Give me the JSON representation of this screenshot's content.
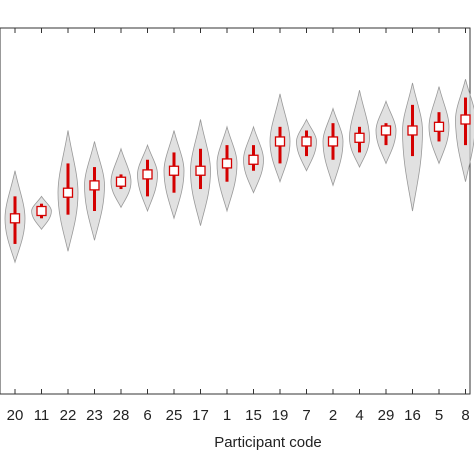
{
  "chart_data": {
    "type": "violin",
    "x_label": "Participant code",
    "categories": [
      "20",
      "11",
      "22",
      "23",
      "28",
      "6",
      "25",
      "17",
      "1",
      "15",
      "19",
      "7",
      "2",
      "4",
      "29",
      "16",
      "5",
      "8"
    ],
    "median": [
      48,
      50,
      55,
      57,
      58,
      60,
      61,
      61,
      63,
      64,
      69,
      69,
      69,
      70,
      72,
      72,
      73,
      75
    ],
    "whisker_low": [
      41,
      48,
      49,
      50,
      56,
      54,
      55,
      56,
      58,
      61,
      63,
      65,
      64,
      66,
      68,
      65,
      69,
      68
    ],
    "whisker_high": [
      54,
      52,
      63,
      62,
      60,
      64,
      66,
      67,
      68,
      68,
      73,
      72,
      74,
      73,
      74,
      79,
      77,
      81
    ],
    "min": [
      36,
      45,
      39,
      42,
      51,
      50,
      48,
      46,
      50,
      55,
      58,
      61,
      57,
      62,
      63,
      50,
      63,
      58
    ],
    "max": [
      61,
      54,
      72,
      69,
      67,
      68,
      72,
      75,
      73,
      73,
      82,
      75,
      78,
      83,
      80,
      85,
      84,
      86
    ],
    "ylim": [
      0,
      100
    ],
    "violin_color": "#d4d4d4",
    "whisker_color": "#d40000"
  }
}
